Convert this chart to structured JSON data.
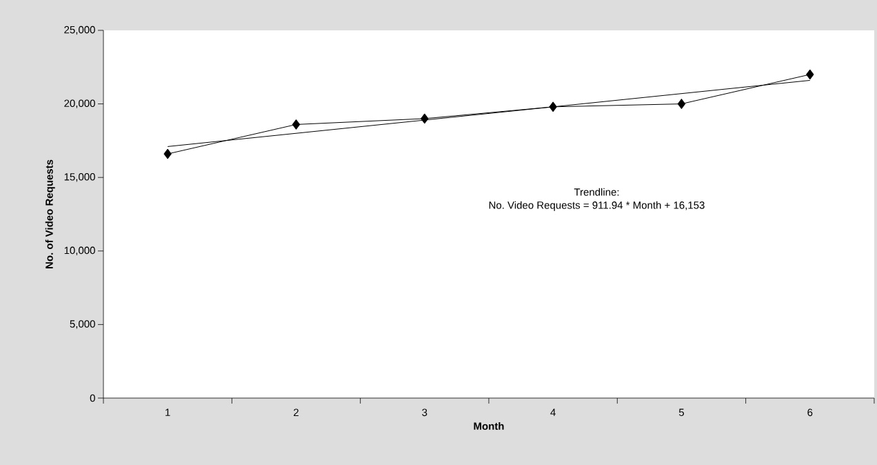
{
  "chart_data": {
    "type": "line",
    "xlabel": "Month",
    "ylabel": "No. of Video Requests",
    "categories": [
      "1",
      "2",
      "3",
      "4",
      "5",
      "6"
    ],
    "series": [
      {
        "color": "#000000",
        "marker": "diamond",
        "values": [
          16600,
          18600,
          19000,
          19800,
          20000,
          22000
        ]
      },
      {
        "color": "#000000",
        "marker": "none",
        "values": [
          17100,
          18000,
          18900,
          19800,
          20700,
          21600
        ]
      }
    ],
    "ylim": [
      0,
      25000
    ],
    "yticks": [
      0,
      {
        "value": 5000,
        "label": "5,000"
      },
      {
        "value": 10000,
        "label": "10,000"
      },
      {
        "value": 15000,
        "label": "15,000"
      },
      {
        "value": 20000,
        "label": "20,000"
      },
      {
        "value": 25000,
        "label": "25,000"
      }
    ],
    "annotations": [
      "Trendline:",
      "No. Video Requests = 911.94 * Month + 16,153"
    ],
    "grid": false
  }
}
